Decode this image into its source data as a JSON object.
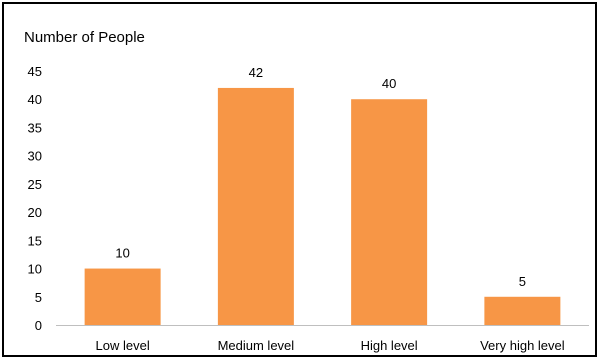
{
  "chart_data": {
    "type": "bar",
    "title": "Number of People",
    "xlabel": "",
    "ylabel": "",
    "categories": [
      "Low level",
      "Medium level",
      "High level",
      "Very high level"
    ],
    "values": [
      10,
      42,
      40,
      5
    ],
    "data_labels": [
      "10",
      "42",
      "40",
      "5"
    ],
    "ylim": [
      0,
      45
    ],
    "yticks": [
      0,
      5,
      10,
      15,
      20,
      25,
      30,
      35,
      40,
      45
    ],
    "ytick_labels": [
      "0",
      "5",
      "10",
      "15",
      "20",
      "25",
      "30",
      "35",
      "40",
      "45"
    ],
    "grid": false,
    "legend": "none",
    "bar_color": "#f79646"
  }
}
